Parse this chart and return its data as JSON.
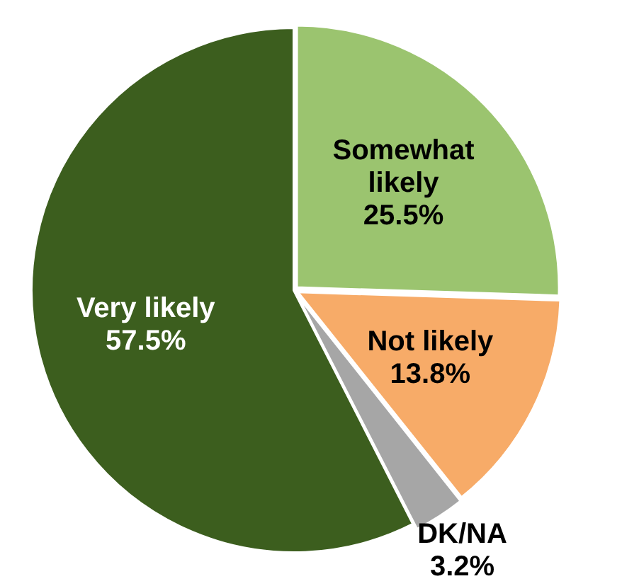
{
  "chart_data": {
    "type": "pie",
    "categories": [
      "Somewhat likely",
      "Not likely",
      "DK/NA",
      "Very likely"
    ],
    "values": [
      25.5,
      13.8,
      3.2,
      57.5
    ],
    "colors": [
      "#9bc46f",
      "#f7ab68",
      "#a6a6a6",
      "#3c5e1e"
    ],
    "value_labels": [
      "25.5%",
      "13.8%",
      "3.2%",
      "57.5%"
    ],
    "legend": false
  }
}
